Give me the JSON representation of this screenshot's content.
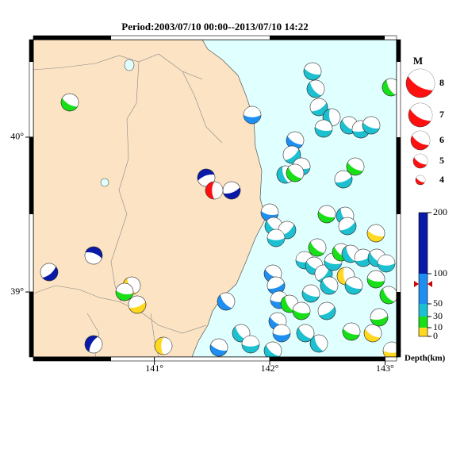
{
  "title": "Period:2003/07/10 00:00--2013/07/10 14:22",
  "map": {
    "xlim": [
      139.95,
      143.1
    ],
    "ylim": [
      38.58,
      40.63
    ],
    "xticks": [
      {
        "value": 141,
        "label": "141°"
      },
      {
        "value": 142,
        "label": "142°"
      },
      {
        "value": 143,
        "label": "143°"
      }
    ],
    "yticks": [
      {
        "value": 39,
        "label": "39°"
      },
      {
        "value": 40,
        "label": "40°"
      }
    ]
  },
  "legend": {
    "title": "M",
    "magnitudes": [
      8,
      7,
      6,
      5,
      4
    ]
  },
  "depth": {
    "ticks": [
      200,
      100,
      50,
      30,
      10,
      0
    ],
    "label": "Depth(km)"
  }
}
